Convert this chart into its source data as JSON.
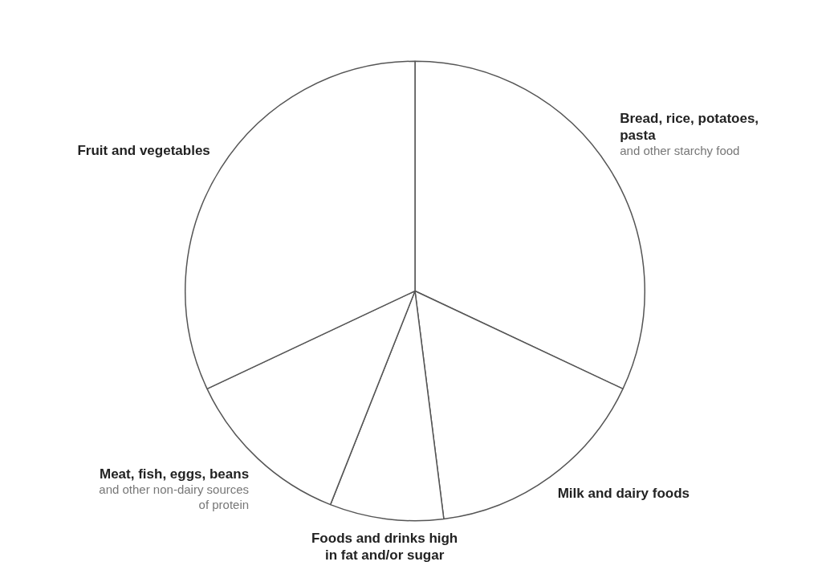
{
  "chart_data": {
    "type": "pie",
    "categories": [
      "Bread, rice, potatoes, pasta",
      "Milk and dairy foods",
      "Foods and drinks high in fat and/or sugar",
      "Meat, fish, eggs, beans",
      "Fruit and vegetables"
    ],
    "values": [
      32,
      16,
      8,
      12,
      32
    ],
    "colors": [
      "#ffffff",
      "#ffffff",
      "#ffffff",
      "#ffffff",
      "#ffffff"
    ],
    "legend": false,
    "annotations": [
      {
        "text": "and other starchy food",
        "x": "Bread, rice, potatoes, pasta"
      },
      {
        "text": "and other non-dairy sources of protein",
        "x": "Meat, fish, eggs, beans"
      }
    ]
  }
}
